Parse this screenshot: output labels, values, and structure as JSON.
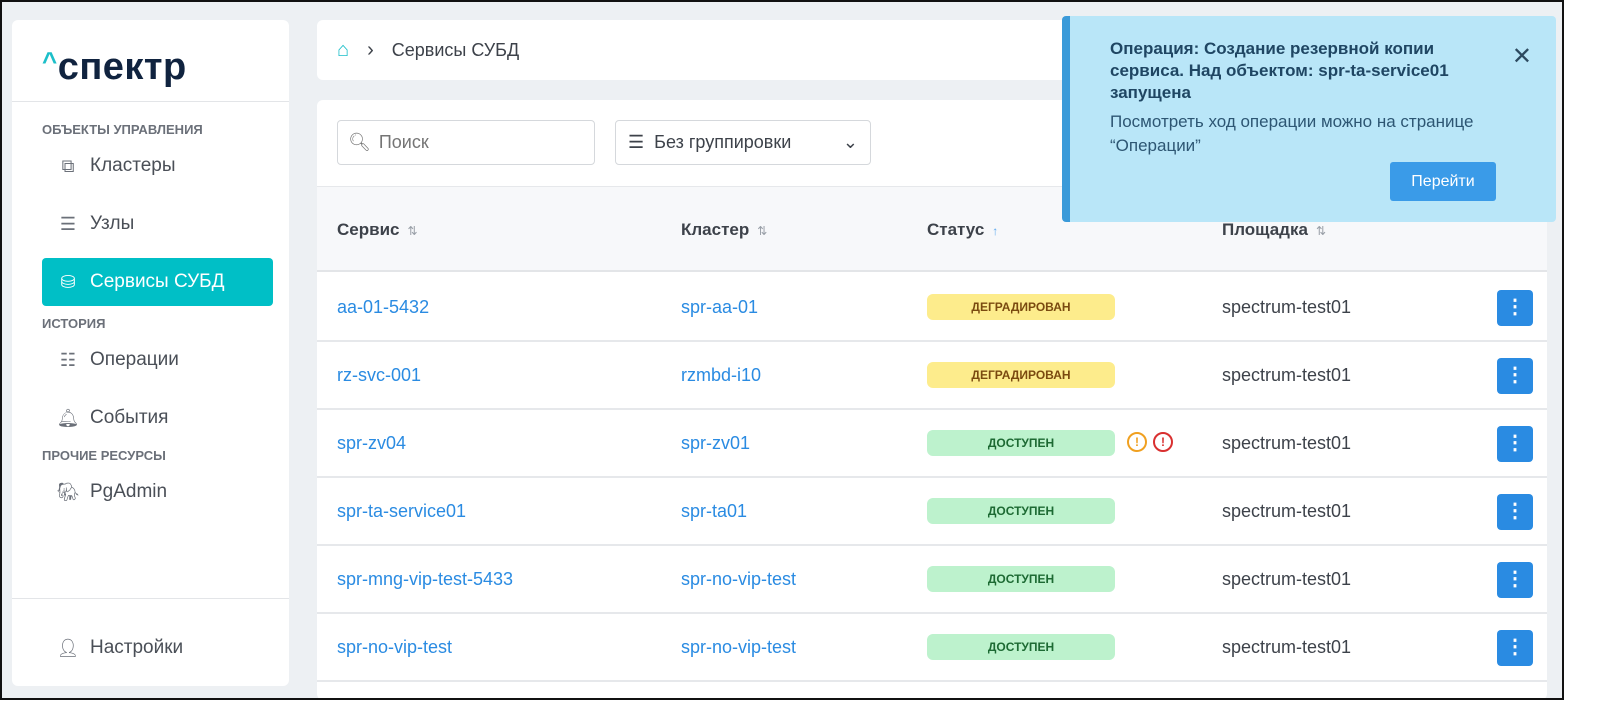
{
  "logo": "спектр",
  "sidebar": {
    "sections": [
      {
        "title": "ОБЪЕКТЫ УПРАВЛЕНИЯ"
      },
      {
        "title": "ИСТОРИЯ"
      },
      {
        "title": "ПРОЧИЕ РЕСУРСЫ"
      }
    ],
    "items": [
      {
        "label": "Кластеры",
        "icon": "cluster-icon"
      },
      {
        "label": "Узлы",
        "icon": "server-icon"
      },
      {
        "label": "Сервисы СУБД",
        "icon": "database-gear-icon",
        "active": true
      },
      {
        "label": "Операции",
        "icon": "operations-icon"
      },
      {
        "label": "События",
        "icon": "bell-icon"
      },
      {
        "label": "PgAdmin",
        "icon": "elephant-icon"
      },
      {
        "label": "Настройки",
        "icon": "user-icon"
      }
    ]
  },
  "breadcrumb": {
    "current": "Сервисы СУБД"
  },
  "toolbar": {
    "search_placeholder": "Поиск",
    "grouping": "Без группировки"
  },
  "table": {
    "headers": [
      "Сервис",
      "Кластер",
      "Статус",
      "Площадка"
    ],
    "rows": [
      {
        "service": "aa-01-5432",
        "cluster": "spr-aa-01",
        "status": "ДЕГРАДИРОВАН",
        "site": "spectrum-test01"
      },
      {
        "service": "rz-svc-001",
        "cluster": "rzmbd-i10",
        "status": "ДЕГРАДИРОВАН",
        "site": "spectrum-test01"
      },
      {
        "service": "spr-zv04",
        "cluster": "spr-zv01",
        "status": "ДОСТУПЕН",
        "site": "spectrum-test01",
        "warnings": [
          "!",
          "!"
        ]
      },
      {
        "service": "spr-ta-service01",
        "cluster": "spr-ta01",
        "status": "ДОСТУПЕН",
        "site": "spectrum-test01"
      },
      {
        "service": "spr-mng-vip-test-5433",
        "cluster": "spr-no-vip-test",
        "status": "ДОСТУПЕН",
        "site": "spectrum-test01"
      },
      {
        "service": "spr-no-vip-test",
        "cluster": "spr-no-vip-test",
        "status": "ДОСТУПЕН",
        "site": "spectrum-test01"
      }
    ]
  },
  "toast": {
    "title": "Операция: Создание резервной копии сервиса. Над объектом: spr-ta-service01 запущена",
    "message": "Посмотреть ход операции можно на странице “Операции”",
    "button": "Перейти"
  },
  "colors": {
    "accent": "#00bfc6",
    "link": "#2a8be2",
    "degraded": "#fdec8c",
    "available": "#bdf2cd",
    "toast": "#b9e6f8"
  }
}
